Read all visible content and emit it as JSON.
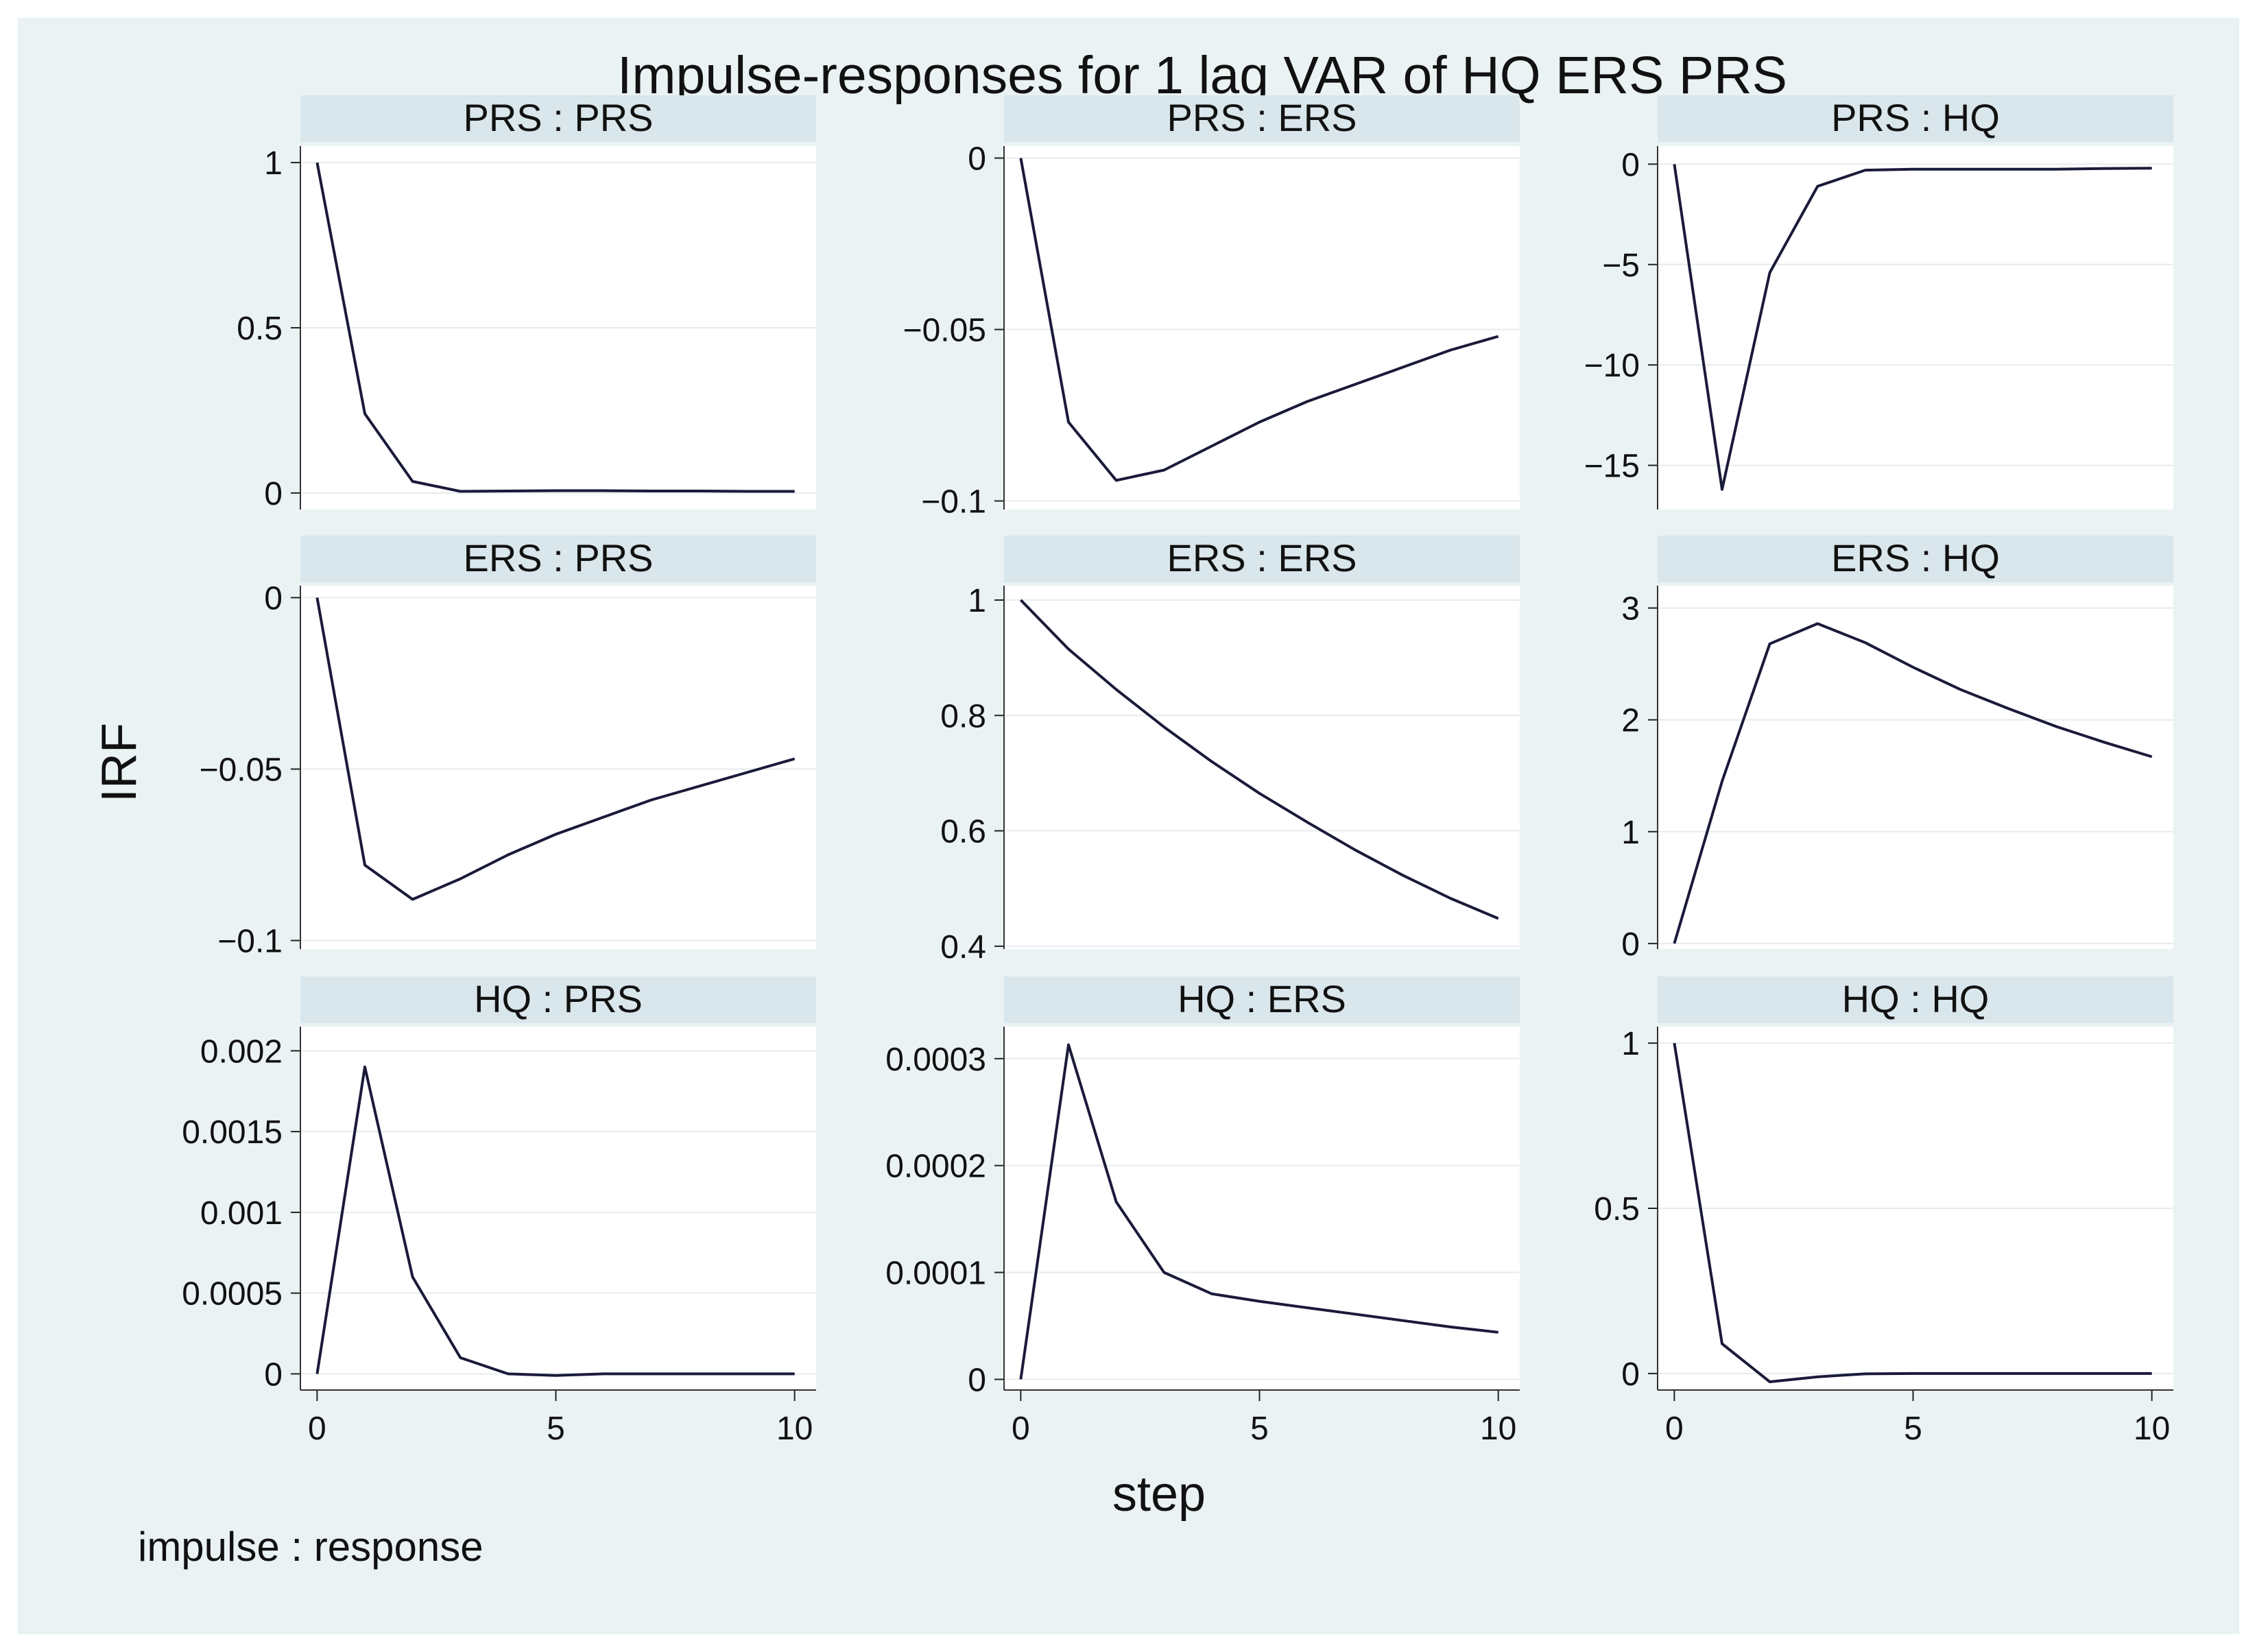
{
  "chart_data": {
    "type": "line",
    "title": "Impulse-responses for 1 lag VAR of HQ ERS PRS",
    "xlabel": "step",
    "ylabel": "IRF",
    "note": "impulse : response",
    "x": [
      0,
      1,
      2,
      3,
      4,
      5,
      6,
      7,
      8,
      9,
      10
    ],
    "x_ticks": [
      "0",
      "5",
      "10"
    ],
    "line_color": "#1a1a3a",
    "strip_color": "#d9e6eb",
    "panel_color": "#ffffff",
    "grid_color": "#e6eced",
    "panels": [
      {
        "label": "PRS : PRS",
        "ylim": [
          -0.05,
          1.05
        ],
        "yticks": [
          0,
          0.5,
          1
        ],
        "ytick_labels": [
          "0",
          "0.5",
          "1"
        ],
        "values": [
          1,
          0.24,
          0.035,
          0.005,
          0.006,
          0.007,
          0.007,
          0.006,
          0.006,
          0.005,
          0.005
        ]
      },
      {
        "label": "PRS : ERS",
        "ylim": [
          -0.1025,
          0.0035
        ],
        "yticks": [
          -0.1,
          -0.05,
          0
        ],
        "ytick_labels": [
          "−0.1",
          "−0.05",
          "0"
        ],
        "values": [
          0,
          -0.077,
          -0.094,
          -0.091,
          -0.084,
          -0.077,
          -0.071,
          -0.066,
          -0.061,
          -0.056,
          -0.052
        ]
      },
      {
        "label": "PRS : HQ",
        "ylim": [
          -17.2,
          0.9
        ],
        "yticks": [
          -15,
          -10,
          -5,
          0
        ],
        "ytick_labels": [
          "−15",
          "−10",
          "−5",
          "0"
        ],
        "values": [
          0,
          -16.2,
          -5.4,
          -1.1,
          -0.3,
          -0.25,
          -0.25,
          -0.25,
          -0.25,
          -0.22,
          -0.2
        ]
      },
      {
        "label": "ERS : PRS",
        "ylim": [
          -0.1025,
          0.0035
        ],
        "yticks": [
          -0.1,
          -0.05,
          0
        ],
        "ytick_labels": [
          "−0.1",
          "−0.05",
          "0"
        ],
        "values": [
          0,
          -0.078,
          -0.088,
          -0.082,
          -0.075,
          -0.069,
          -0.064,
          -0.059,
          -0.055,
          -0.051,
          -0.047
        ]
      },
      {
        "label": "ERS : ERS",
        "ylim": [
          0.395,
          1.025
        ],
        "yticks": [
          0.4,
          0.6,
          0.8,
          1
        ],
        "ytick_labels": [
          "0.4",
          "0.6",
          "0.8",
          "1"
        ],
        "values": [
          1,
          0.915,
          0.845,
          0.78,
          0.72,
          0.665,
          0.615,
          0.567,
          0.523,
          0.483,
          0.448
        ]
      },
      {
        "label": "ERS : HQ",
        "ylim": [
          -0.05,
          3.2
        ],
        "yticks": [
          0,
          1,
          2,
          3
        ],
        "ytick_labels": [
          "0",
          "1",
          "2",
          "3"
        ],
        "values": [
          0,
          1.45,
          2.68,
          2.86,
          2.69,
          2.47,
          2.27,
          2.1,
          1.94,
          1.8,
          1.67
        ]
      },
      {
        "label": "HQ : PRS",
        "ylim": [
          -0.0001,
          0.00215
        ],
        "yticks": [
          0,
          0.0005,
          0.001,
          0.0015,
          0.002
        ],
        "ytick_labels": [
          "0",
          "0.0005",
          "0.001",
          "0.0015",
          "0.002"
        ],
        "values": [
          0,
          0.0019,
          0.0006,
          0.0001,
          0,
          -1e-05,
          0,
          0,
          0,
          0,
          0
        ]
      },
      {
        "label": "HQ : ERS",
        "ylim": [
          -1e-05,
          0.00033
        ],
        "yticks": [
          0,
          0.0001,
          0.0002,
          0.0003
        ],
        "ytick_labels": [
          "0",
          "0.0001",
          "0.0002",
          "0.0003"
        ],
        "values": [
          0,
          0.000313,
          0.000166,
          0.0001,
          8e-05,
          7.3e-05,
          6.7e-05,
          6.1e-05,
          5.5e-05,
          4.9e-05,
          4.4e-05
        ]
      },
      {
        "label": "HQ : HQ",
        "ylim": [
          -0.05,
          1.05
        ],
        "yticks": [
          0,
          0.5,
          1
        ],
        "ytick_labels": [
          "0",
          "0.5",
          "1"
        ],
        "values": [
          1,
          0.09,
          -0.025,
          -0.01,
          -0.001,
          0,
          0,
          0,
          0,
          0,
          0
        ]
      }
    ]
  }
}
